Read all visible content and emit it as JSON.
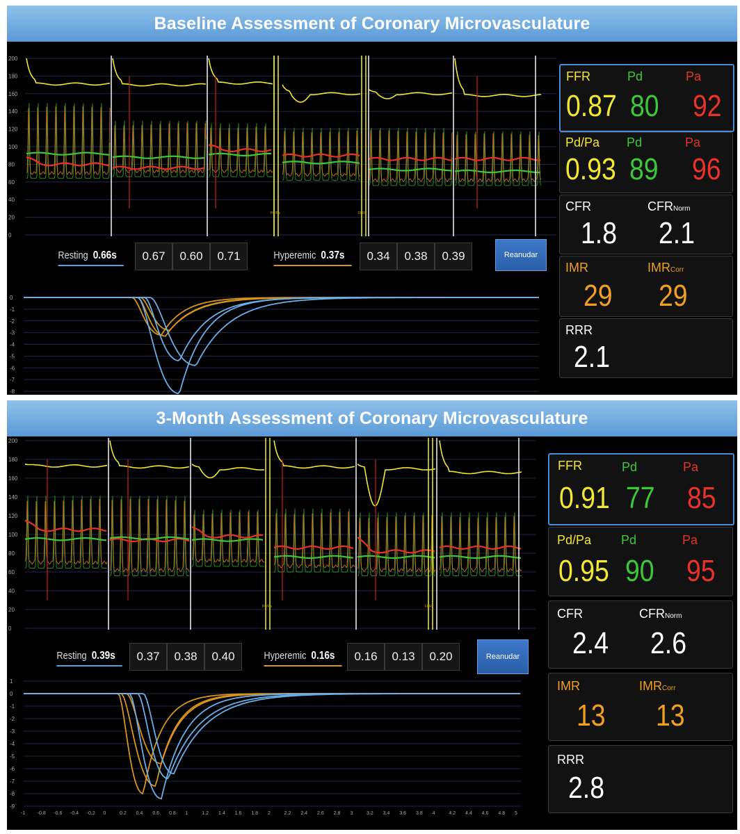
{
  "panels": [
    {
      "title": "Baseline Assessment of Coronary Microvasculature",
      "pressure_axis": {
        "ticks": [
          "200",
          "180",
          "160",
          "140",
          "120",
          "100",
          "80",
          "60",
          "40",
          "20",
          "0"
        ]
      },
      "markers": [
        "Pd/Pa",
        "FFR"
      ],
      "resting": {
        "label": "Resting",
        "mean": "0.66s",
        "values": [
          "0.67",
          "0.60",
          "0.71"
        ]
      },
      "hyperemic": {
        "label": "Hyperemic",
        "mean": "0.37s",
        "values": [
          "0.34",
          "0.38",
          "0.39"
        ]
      },
      "button": "Reanudar",
      "thermo_axis": {
        "ticks": [
          "0",
          "-1",
          "-2",
          "-3",
          "-4",
          "-5",
          "-6",
          "-7",
          "-8"
        ]
      },
      "metrics": {
        "ffr": {
          "label": "FFR",
          "value": "0.87",
          "pd_label": "Pd",
          "pd": "80",
          "pa_label": "Pa",
          "pa": "92"
        },
        "pdpa": {
          "label": "Pd/Pa",
          "value": "0.93",
          "pd_label": "Pd",
          "pd": "89",
          "pa_label": "Pa",
          "pa": "96"
        },
        "cfr": {
          "label": "CFR",
          "value": "1.8",
          "norm_label": "CFR",
          "norm_sub": "Norm",
          "norm": "2.1"
        },
        "imr": {
          "label": "IMR",
          "value": "29",
          "corr_label": "IMR",
          "corr_sub": "Corr",
          "corr": "29"
        },
        "rrr": {
          "label": "RRR",
          "value": "2.1"
        }
      }
    },
    {
      "title": "3-Month Assessment of Coronary Microvasculature",
      "pressure_axis": {
        "ticks": [
          "200",
          "180",
          "160",
          "140",
          "120",
          "100",
          "80",
          "60",
          "40",
          "20",
          "0"
        ]
      },
      "markers": [
        "Pd/Pa",
        "FFR"
      ],
      "resting": {
        "label": "Resting",
        "mean": "0.39s",
        "values": [
          "0.37",
          "0.38",
          "0.40"
        ]
      },
      "hyperemic": {
        "label": "Hyperemic",
        "mean": "0.16s",
        "values": [
          "0.16",
          "0.13",
          "0.20"
        ]
      },
      "button": "Reanudar",
      "thermo_axis": {
        "ticks": [
          "1",
          "0",
          "-1",
          "-2",
          "-3",
          "-4",
          "-5",
          "-6",
          "-7",
          "-8",
          "-9"
        ],
        "xticks": [
          "-1",
          "-0.8",
          "-0.6",
          "-0.4",
          "-0.2",
          "0",
          "0.2",
          "0.4",
          "0.6",
          "0.8",
          "1",
          "1.2",
          "1.4",
          "1.6",
          "1.8",
          "2",
          "2.2",
          "2.4",
          "2.6",
          "2.8",
          "3",
          "3.2",
          "3.4",
          "3.6",
          "3.8",
          "4",
          "4.2",
          "4.4",
          "4.6",
          "4.8",
          "5"
        ]
      },
      "metrics": {
        "ffr": {
          "label": "FFR",
          "value": "0.91",
          "pd_label": "Pd",
          "pd": "77",
          "pa_label": "Pa",
          "pa": "85"
        },
        "pdpa": {
          "label": "Pd/Pa",
          "value": "0.95",
          "pd_label": "Pd",
          "pd": "90",
          "pa_label": "Pa",
          "pa": "95"
        },
        "cfr": {
          "label": "CFR",
          "value": "2.4",
          "norm_label": "CFR",
          "norm_sub": "Norm",
          "norm": "2.6"
        },
        "imr": {
          "label": "IMR",
          "value": "13",
          "corr_label": "IMR",
          "corr_sub": "Corr",
          "corr": "13"
        },
        "rrr": {
          "label": "RRR",
          "value": "2.8"
        }
      }
    }
  ],
  "colors": {
    "aortic_pressure": "#f2e830",
    "distal_pressure_red": "#e8322a",
    "distal_pressure_green": "#3cc838",
    "resting_curve": "#6aaee8",
    "hyperemic_curve": "#d8941c",
    "title_bar": "#6fa8dc"
  }
}
